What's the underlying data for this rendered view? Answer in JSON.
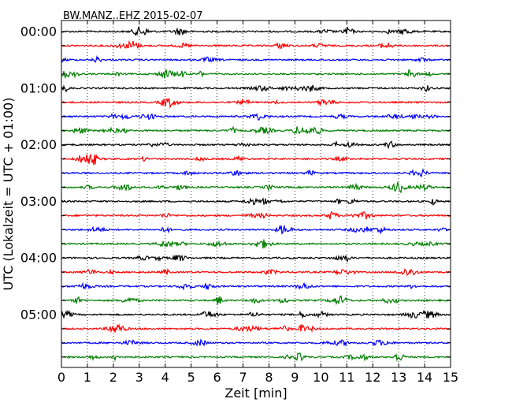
{
  "chart_data": {
    "type": "line",
    "title": "BW.MANZ..EHZ 2015-02-07",
    "xlabel": "Zeit  [min]",
    "ylabel": "UTC (Lokalzeit = UTC + 01:00)",
    "xlim": [
      0,
      15
    ],
    "x_ticks": [
      "0",
      "1",
      "2",
      "3",
      "4",
      "5",
      "6",
      "7",
      "8",
      "9",
      "10",
      "11",
      "12",
      "13",
      "14",
      "15"
    ],
    "y_ticks": [
      "00:00",
      "01:00",
      "02:00",
      "03:00",
      "04:00",
      "05:00"
    ],
    "rows_per_hour": 4,
    "row_minutes": 15,
    "row_colors": [
      "#000000",
      "#ff0000",
      "#0000ff",
      "#007f00"
    ],
    "grid": "vertical dotted",
    "series": [
      {
        "start": "00:00",
        "color": "#000000"
      },
      {
        "start": "00:15",
        "color": "#ff0000"
      },
      {
        "start": "00:30",
        "color": "#0000ff"
      },
      {
        "start": "00:45",
        "color": "#007f00"
      },
      {
        "start": "01:00",
        "color": "#000000"
      },
      {
        "start": "01:15",
        "color": "#ff0000"
      },
      {
        "start": "01:30",
        "color": "#0000ff"
      },
      {
        "start": "01:45",
        "color": "#007f00"
      },
      {
        "start": "02:00",
        "color": "#000000"
      },
      {
        "start": "02:15",
        "color": "#ff0000"
      },
      {
        "start": "02:30",
        "color": "#0000ff"
      },
      {
        "start": "02:45",
        "color": "#007f00"
      },
      {
        "start": "03:00",
        "color": "#000000"
      },
      {
        "start": "03:15",
        "color": "#ff0000"
      },
      {
        "start": "03:30",
        "color": "#0000ff"
      },
      {
        "start": "03:45",
        "color": "#007f00"
      },
      {
        "start": "04:00",
        "color": "#000000"
      },
      {
        "start": "04:15",
        "color": "#ff0000"
      },
      {
        "start": "04:30",
        "color": "#0000ff"
      },
      {
        "start": "04:45",
        "color": "#007f00"
      },
      {
        "start": "05:00",
        "color": "#000000"
      },
      {
        "start": "05:15",
        "color": "#ff0000"
      },
      {
        "start": "05:30",
        "color": "#0000ff"
      },
      {
        "start": "05:45",
        "color": "#007f00"
      }
    ]
  }
}
